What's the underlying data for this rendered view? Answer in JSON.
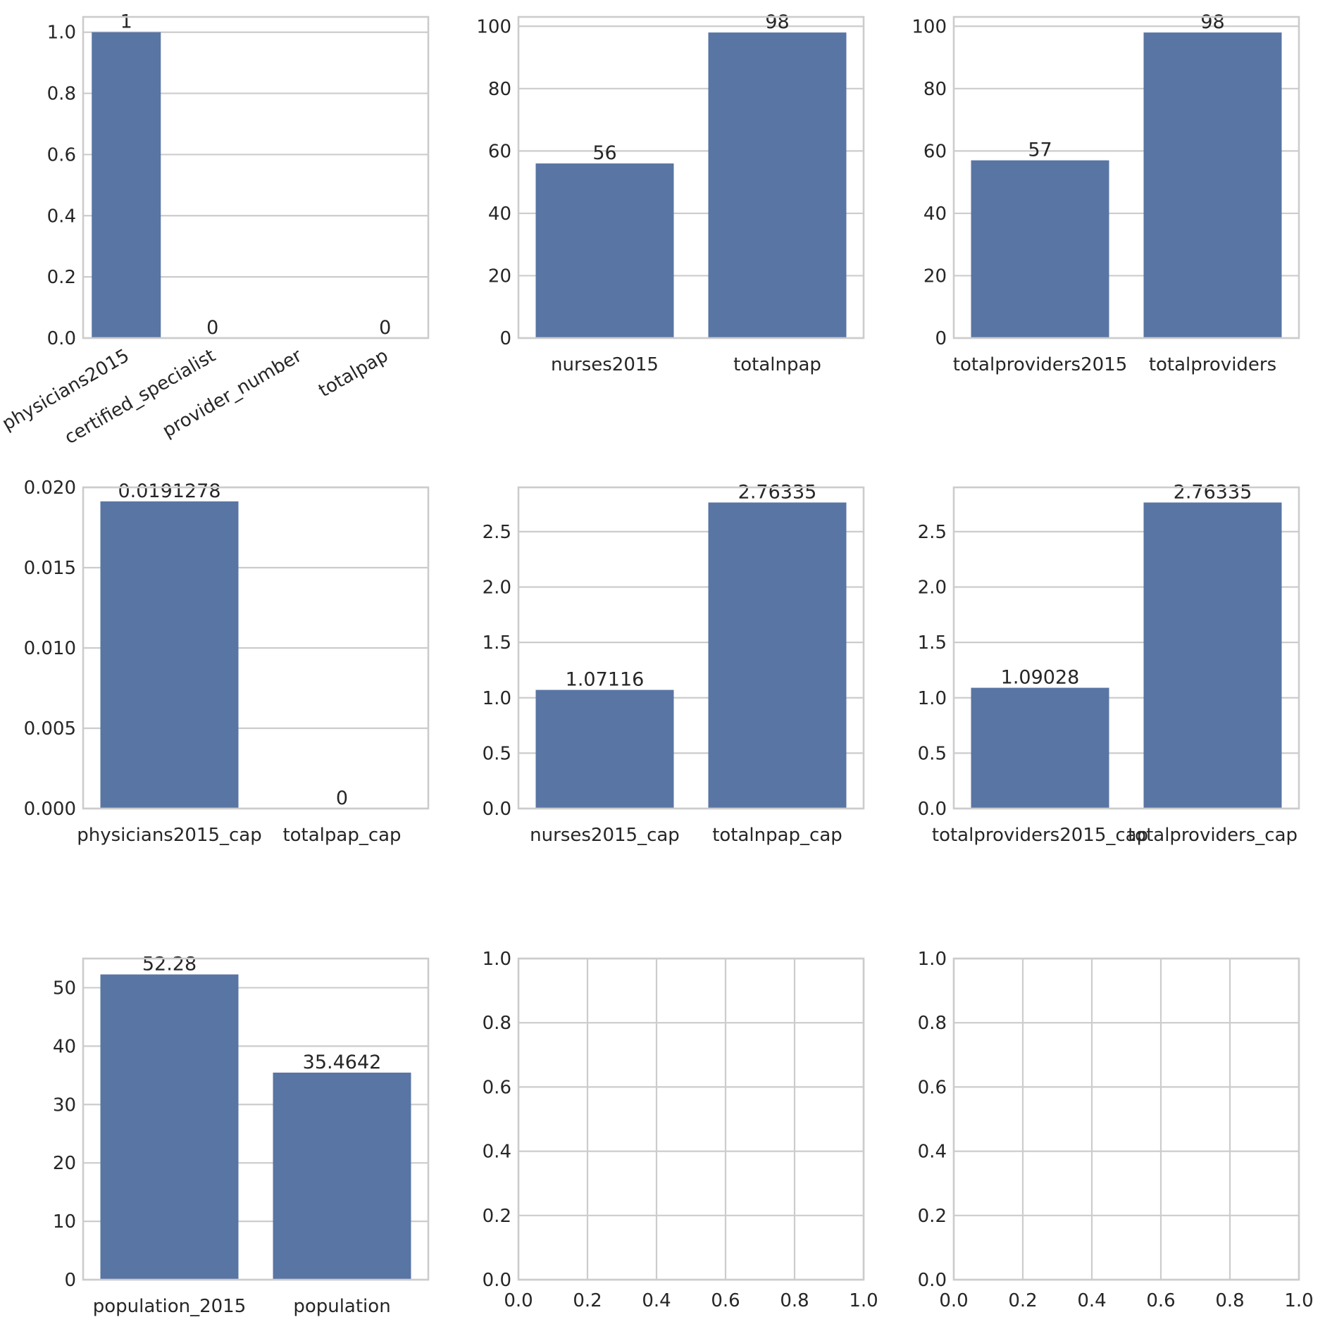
{
  "chart_data": [
    {
      "type": "bar",
      "categories": [
        "physicians2015",
        "certified_specialist",
        "provider_number",
        "totalpap"
      ],
      "values": [
        1,
        0,
        null,
        0
      ],
      "data_labels": [
        "1",
        "0",
        "",
        "0"
      ],
      "ylim": [
        0,
        1.05
      ],
      "yticks": [
        "0.0",
        "0.2",
        "0.4",
        "0.6",
        "0.8",
        "1.0"
      ],
      "ytick_values": [
        0,
        0.2,
        0.4,
        0.6,
        0.8,
        1.0
      ],
      "grid": "y",
      "xtick_rotation": 30,
      "color": "#5975a4"
    },
    {
      "type": "bar",
      "categories": [
        "nurses2015",
        "totalnpap"
      ],
      "values": [
        56,
        98
      ],
      "data_labels": [
        "56",
        "98"
      ],
      "ylim": [
        0,
        103
      ],
      "yticks": [
        "0",
        "20",
        "40",
        "60",
        "80",
        "100"
      ],
      "ytick_values": [
        0,
        20,
        40,
        60,
        80,
        100
      ],
      "grid": "y",
      "color": "#5975a4"
    },
    {
      "type": "bar",
      "categories": [
        "totalproviders2015",
        "totalproviders"
      ],
      "values": [
        57,
        98
      ],
      "data_labels": [
        "57",
        "98"
      ],
      "ylim": [
        0,
        103
      ],
      "yticks": [
        "0",
        "20",
        "40",
        "60",
        "80",
        "100"
      ],
      "ytick_values": [
        0,
        20,
        40,
        60,
        80,
        100
      ],
      "grid": "y",
      "color": "#5975a4"
    },
    {
      "type": "bar",
      "categories": [
        "physicians2015_cap",
        "totalpap_cap"
      ],
      "values": [
        0.0191278,
        0
      ],
      "data_labels": [
        "0.0191278",
        "0"
      ],
      "ylim": [
        0,
        0.02
      ],
      "yticks": [
        "0.000",
        "0.005",
        "0.010",
        "0.015",
        "0.020"
      ],
      "ytick_values": [
        0,
        0.005,
        0.01,
        0.015,
        0.02
      ],
      "grid": "y",
      "color": "#5975a4"
    },
    {
      "type": "bar",
      "categories": [
        "nurses2015_cap",
        "totalnpap_cap"
      ],
      "values": [
        1.07116,
        2.76335
      ],
      "data_labels": [
        "1.07116",
        "2.76335"
      ],
      "ylim": [
        0,
        2.9
      ],
      "yticks": [
        "0.0",
        "0.5",
        "1.0",
        "1.5",
        "2.0",
        "2.5"
      ],
      "ytick_values": [
        0,
        0.5,
        1.0,
        1.5,
        2.0,
        2.5
      ],
      "grid": "y",
      "color": "#5975a4"
    },
    {
      "type": "bar",
      "categories": [
        "totalproviders2015_cap",
        "totalproviders_cap"
      ],
      "values": [
        1.09028,
        2.76335
      ],
      "data_labels": [
        "1.09028",
        "2.76335"
      ],
      "ylim": [
        0,
        2.9
      ],
      "yticks": [
        "0.0",
        "0.5",
        "1.0",
        "1.5",
        "2.0",
        "2.5"
      ],
      "ytick_values": [
        0,
        0.5,
        1.0,
        1.5,
        2.0,
        2.5
      ],
      "grid": "y",
      "color": "#5975a4"
    },
    {
      "type": "bar",
      "categories": [
        "population_2015",
        "population"
      ],
      "values": [
        52.28,
        35.4642
      ],
      "data_labels": [
        "52.28",
        "35.4642"
      ],
      "ylim": [
        0,
        55
      ],
      "yticks": [
        "0",
        "10",
        "20",
        "30",
        "40",
        "50"
      ],
      "ytick_values": [
        0,
        10,
        20,
        30,
        40,
        50
      ],
      "grid": "y",
      "color": "#5975a4"
    },
    {
      "type": "empty",
      "xlim": [
        0,
        1
      ],
      "ylim": [
        0,
        1
      ],
      "xticks": [
        "0.0",
        "0.2",
        "0.4",
        "0.6",
        "0.8",
        "1.0"
      ],
      "xtick_values": [
        0,
        0.2,
        0.4,
        0.6,
        0.8,
        1.0
      ],
      "yticks": [
        "0.0",
        "0.2",
        "0.4",
        "0.6",
        "0.8",
        "1.0"
      ],
      "ytick_values": [
        0,
        0.2,
        0.4,
        0.6,
        0.8,
        1.0
      ],
      "grid": "both"
    },
    {
      "type": "empty",
      "xlim": [
        0,
        1
      ],
      "ylim": [
        0,
        1
      ],
      "xticks": [
        "0.0",
        "0.2",
        "0.4",
        "0.6",
        "0.8",
        "1.0"
      ],
      "xtick_values": [
        0,
        0.2,
        0.4,
        0.6,
        0.8,
        1.0
      ],
      "yticks": [
        "0.0",
        "0.2",
        "0.4",
        "0.6",
        "0.8",
        "1.0"
      ],
      "ytick_values": [
        0,
        0.2,
        0.4,
        0.6,
        0.8,
        1.0
      ],
      "grid": "both"
    }
  ]
}
